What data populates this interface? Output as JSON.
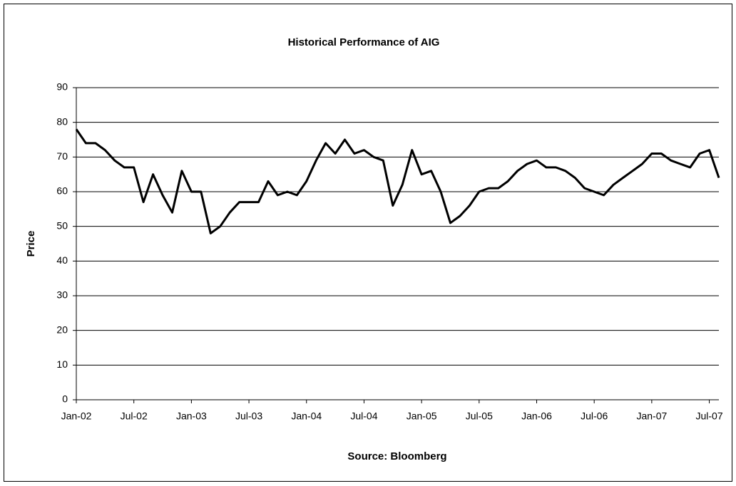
{
  "chart_data": {
    "type": "line",
    "title": "Historical Performance of AIG",
    "y_label": "Price",
    "x_label": "Source: Bloomberg",
    "x": [
      "2002-01",
      "2002-02",
      "2002-03",
      "2002-04",
      "2002-05",
      "2002-06",
      "2002-07",
      "2002-08",
      "2002-09",
      "2002-10",
      "2002-11",
      "2002-12",
      "2003-01",
      "2003-02",
      "2003-03",
      "2003-04",
      "2003-05",
      "2003-06",
      "2003-07",
      "2003-08",
      "2003-09",
      "2003-10",
      "2003-11",
      "2003-12",
      "2004-01",
      "2004-02",
      "2004-03",
      "2004-04",
      "2004-05",
      "2004-06",
      "2004-07",
      "2004-08",
      "2004-09",
      "2004-10",
      "2004-11",
      "2004-12",
      "2005-01",
      "2005-02",
      "2005-03",
      "2005-04",
      "2005-05",
      "2005-06",
      "2005-07",
      "2005-08",
      "2005-09",
      "2005-10",
      "2005-11",
      "2005-12",
      "2006-01",
      "2006-02",
      "2006-03",
      "2006-04",
      "2006-05",
      "2006-06",
      "2006-07",
      "2006-08",
      "2006-09",
      "2006-10",
      "2006-11",
      "2006-12",
      "2007-01",
      "2007-02",
      "2007-03",
      "2007-04",
      "2007-05",
      "2007-06",
      "2007-07",
      "2007-08"
    ],
    "values": [
      78,
      74,
      74,
      72,
      69,
      67,
      67,
      57,
      65,
      59,
      54,
      66,
      60,
      60,
      48,
      50,
      54,
      57,
      57,
      57,
      63,
      59,
      60,
      59,
      63,
      69,
      74,
      71,
      75,
      71,
      72,
      70,
      69,
      56,
      62,
      72,
      65,
      66,
      60,
      51,
      53,
      56,
      60,
      61,
      61,
      63,
      66,
      68,
      69,
      67,
      67,
      66,
      64,
      61,
      60,
      59,
      62,
      64,
      66,
      68,
      71,
      71,
      69,
      68,
      67,
      71,
      72,
      64
    ],
    "color": "#000000",
    "xlim": [
      "2002-01",
      "2007-08"
    ],
    "xticks": [
      {
        "value": "2002-01",
        "label": "Jan-02"
      },
      {
        "value": "2002-07",
        "label": "Jul-02"
      },
      {
        "value": "2003-01",
        "label": "Jan-03"
      },
      {
        "value": "2003-07",
        "label": "Jul-03"
      },
      {
        "value": "2004-01",
        "label": "Jan-04"
      },
      {
        "value": "2004-07",
        "label": "Jul-04"
      },
      {
        "value": "2005-01",
        "label": "Jan-05"
      },
      {
        "value": "2005-07",
        "label": "Jul-05"
      },
      {
        "value": "2006-01",
        "label": "Jan-06"
      },
      {
        "value": "2006-07",
        "label": "Jul-06"
      },
      {
        "value": "2007-01",
        "label": "Jan-07"
      },
      {
        "value": "2007-07",
        "label": "Jul-07"
      }
    ],
    "ylim": [
      0,
      90
    ],
    "yticks": [
      0,
      10,
      20,
      30,
      40,
      50,
      60,
      70,
      80,
      90
    ],
    "grid": true
  }
}
